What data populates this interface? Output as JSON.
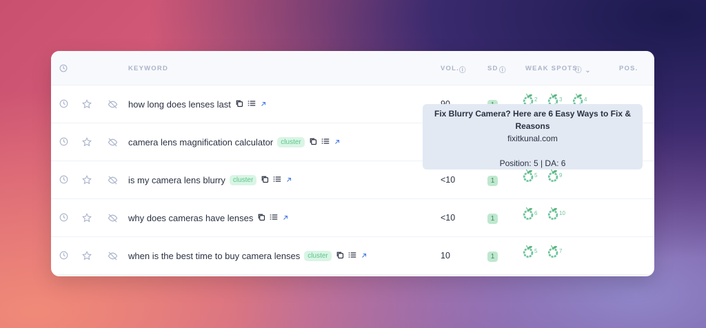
{
  "header": {
    "keyword": "KEYWORD",
    "vol": "VOL.",
    "sd": "SD",
    "weak_spots": "WEAK SPOTS",
    "pos": "POS."
  },
  "colors": {
    "accent_green": "#5cc48a",
    "link_blue": "#4a7de0"
  },
  "rows": [
    {
      "keyword": "how long does lenses last",
      "cluster": "",
      "vol": "90",
      "sd": "1",
      "weak_spots": [
        "2",
        "3",
        "4"
      ]
    },
    {
      "keyword": "camera lens magnification calculator",
      "cluster": "cluster",
      "vol": "",
      "sd": "",
      "weak_spots": []
    },
    {
      "keyword": "is my camera lens blurry",
      "cluster": "cluster",
      "vol": "<10",
      "sd": "1",
      "weak_spots": [
        "5",
        "9"
      ]
    },
    {
      "keyword": "why does cameras have lenses",
      "cluster": "",
      "vol": "<10",
      "sd": "1",
      "weak_spots": [
        "6",
        "10"
      ]
    },
    {
      "keyword": "when is the best time to buy camera lenses",
      "cluster": "cluster",
      "vol": "10",
      "sd": "1",
      "weak_spots": [
        "5",
        "7"
      ]
    }
  ],
  "tooltip": {
    "title": "Fix Blurry Camera? Here are 6 Easy Ways to Fix & Reasons",
    "domain": "fixitkunal.com",
    "meta": "Position: 5 | DA: 6"
  }
}
